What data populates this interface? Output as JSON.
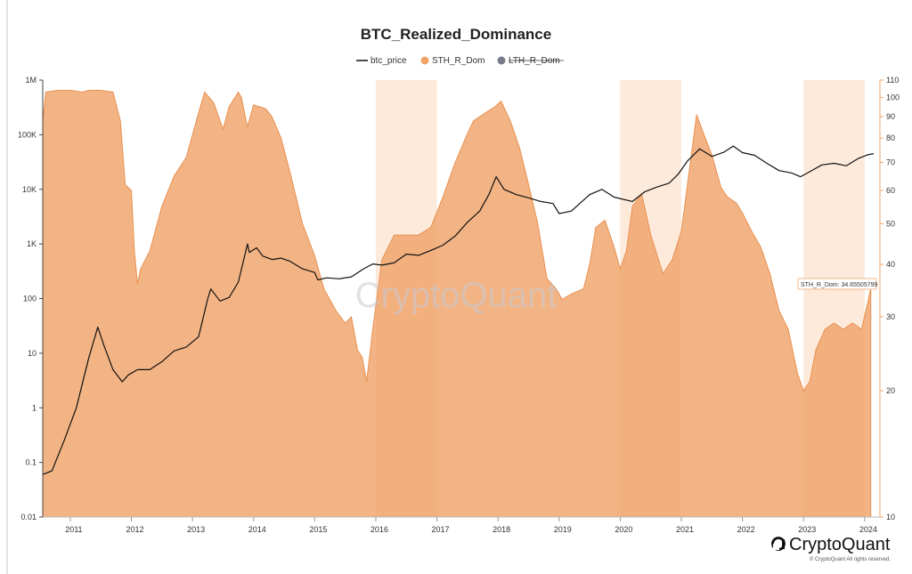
{
  "chart_data": {
    "type": "area",
    "title": "BTC_Realized_Dominance",
    "legend": [
      {
        "name": "btc_price",
        "color": "#111111",
        "marker": "line"
      },
      {
        "name": "STH_R_Dom",
        "color": "#f0a46a",
        "marker": "dot"
      },
      {
        "name": "LTH_R_Dom",
        "color": "#777a88",
        "marker": "dot",
        "hidden": true
      }
    ],
    "legend_position": "top-center",
    "x_ticks": [
      "2011",
      "2012",
      "2013",
      "2014",
      "2015",
      "2016",
      "2017",
      "2018",
      "2019",
      "2020",
      "2021",
      "2022",
      "2023",
      "2024"
    ],
    "x_range": [
      2010.55,
      2024.25
    ],
    "y_left": {
      "scale": "log",
      "range": [
        0.01,
        1000000
      ],
      "ticks": [
        "0.01",
        "0.1",
        "1",
        "10",
        "100",
        "1K",
        "10K",
        "100K",
        "1M"
      ]
    },
    "y_right": {
      "scale": "log",
      "range": [
        10,
        110
      ],
      "ticks": [
        "10",
        "20",
        "30",
        "40",
        "50",
        "60",
        "70",
        "80",
        "90",
        "100",
        "110"
      ]
    },
    "highlight_ranges": [
      [
        2016.0,
        2017.0
      ],
      [
        2020.0,
        2021.0
      ],
      [
        2023.0,
        2024.0
      ]
    ],
    "series": [
      {
        "name": "STH_R_Dom",
        "axis": "right",
        "color": "#f0a46a",
        "x": [
          2010.55,
          2010.6,
          2010.8,
          2011.0,
          2011.2,
          2011.3,
          2011.5,
          2011.7,
          2011.82,
          2011.9,
          2012.0,
          2012.05,
          2012.1,
          2012.15,
          2012.3,
          2012.5,
          2012.7,
          2012.9,
          2013.1,
          2013.2,
          2013.35,
          2013.5,
          2013.6,
          2013.75,
          2013.8,
          2013.9,
          2014.0,
          2014.2,
          2014.3,
          2014.45,
          2014.6,
          2014.8,
          2015.0,
          2015.15,
          2015.35,
          2015.5,
          2015.6,
          2015.7,
          2015.78,
          2015.85,
          2015.95,
          2016.1,
          2016.3,
          2016.5,
          2016.7,
          2016.9,
          2017.1,
          2017.3,
          2017.5,
          2017.6,
          2017.8,
          2017.95,
          2018.05,
          2018.2,
          2018.35,
          2018.5,
          2018.65,
          2018.8,
          2018.95,
          2019.05,
          2019.2,
          2019.4,
          2019.5,
          2019.6,
          2019.75,
          2019.9,
          2020.0,
          2020.1,
          2020.2,
          2020.35,
          2020.5,
          2020.7,
          2020.85,
          2021.0,
          2021.1,
          2021.25,
          2021.35,
          2021.5,
          2021.65,
          2021.75,
          2021.9,
          2022.0,
          2022.15,
          2022.3,
          2022.45,
          2022.6,
          2022.75,
          2022.9,
          2023.0,
          2023.1,
          2023.2,
          2023.35,
          2023.5,
          2023.65,
          2023.8,
          2023.95,
          2024.1
        ],
        "values": [
          88,
          103,
          104,
          104,
          103,
          104,
          104,
          103,
          88,
          62,
          60,
          43,
          36,
          39,
          43,
          55,
          65,
          72,
          92,
          103,
          97,
          84,
          95,
          103,
          100,
          85,
          96,
          94,
          90,
          80,
          66,
          50,
          42,
          35,
          31,
          29,
          30,
          25,
          24,
          21,
          28,
          41,
          47,
          47,
          47,
          49,
          58,
          70,
          82,
          88,
          92,
          95,
          98,
          88,
          76,
          62,
          50,
          37,
          35,
          33,
          34,
          35,
          40,
          49,
          51,
          44,
          39,
          43,
          55,
          59,
          47,
          38,
          41,
          48,
          62,
          91,
          83,
          73,
          61,
          58,
          56,
          53,
          48,
          44,
          38,
          31,
          28,
          22,
          20,
          21,
          25,
          28,
          29,
          28,
          29,
          28,
          35
        ],
        "tooltip_label": "STH_R_Dom: 34.65505799"
      },
      {
        "name": "btc_price",
        "axis": "left",
        "color": "#111111",
        "x": [
          2010.55,
          2010.7,
          2010.9,
          2011.1,
          2011.3,
          2011.45,
          2011.55,
          2011.7,
          2011.85,
          2011.95,
          2012.1,
          2012.3,
          2012.5,
          2012.7,
          2012.9,
          2013.1,
          2013.25,
          2013.3,
          2013.45,
          2013.6,
          2013.75,
          2013.9,
          2013.93,
          2014.05,
          2014.15,
          2014.3,
          2014.45,
          2014.6,
          2014.8,
          2015.0,
          2015.05,
          2015.2,
          2015.4,
          2015.6,
          2015.8,
          2015.95,
          2016.1,
          2016.3,
          2016.5,
          2016.7,
          2016.9,
          2017.1,
          2017.3,
          2017.5,
          2017.7,
          2017.85,
          2017.97,
          2018.1,
          2018.3,
          2018.5,
          2018.7,
          2018.9,
          2019.0,
          2019.2,
          2019.5,
          2019.7,
          2019.9,
          2020.2,
          2020.4,
          2020.6,
          2020.8,
          2020.95,
          2021.1,
          2021.3,
          2021.5,
          2021.7,
          2021.85,
          2022.0,
          2022.2,
          2022.4,
          2022.6,
          2022.8,
          2022.95,
          2023.1,
          2023.3,
          2023.5,
          2023.7,
          2023.9,
          2024.05,
          2024.15
        ],
        "values": [
          0.06,
          0.07,
          0.25,
          1,
          8,
          30,
          14,
          5,
          3,
          4,
          5,
          5,
          7,
          11,
          13,
          20,
          100,
          150,
          90,
          105,
          200,
          1000,
          700,
          850,
          600,
          520,
          550,
          480,
          350,
          300,
          220,
          240,
          230,
          250,
          350,
          430,
          410,
          450,
          650,
          620,
          760,
          950,
          1400,
          2500,
          4000,
          8000,
          17000,
          10000,
          8000,
          7000,
          6000,
          5500,
          3600,
          4000,
          8000,
          10000,
          7200,
          6000,
          9000,
          11000,
          13000,
          19000,
          33000,
          55000,
          40000,
          48000,
          62000,
          47000,
          42000,
          30000,
          22000,
          20000,
          17000,
          21000,
          28000,
          30000,
          27000,
          37000,
          43000,
          45000
        ]
      }
    ]
  },
  "watermark": "CryptoQuant",
  "brand": "CryptoQuant",
  "copyright": "© CryptoQuant All rights reserved.",
  "colors": {
    "sth_fill": "#f0a46a",
    "highlight_band": "#fdeadb",
    "price_line": "#111111",
    "legend_hidden": "#777a88"
  }
}
